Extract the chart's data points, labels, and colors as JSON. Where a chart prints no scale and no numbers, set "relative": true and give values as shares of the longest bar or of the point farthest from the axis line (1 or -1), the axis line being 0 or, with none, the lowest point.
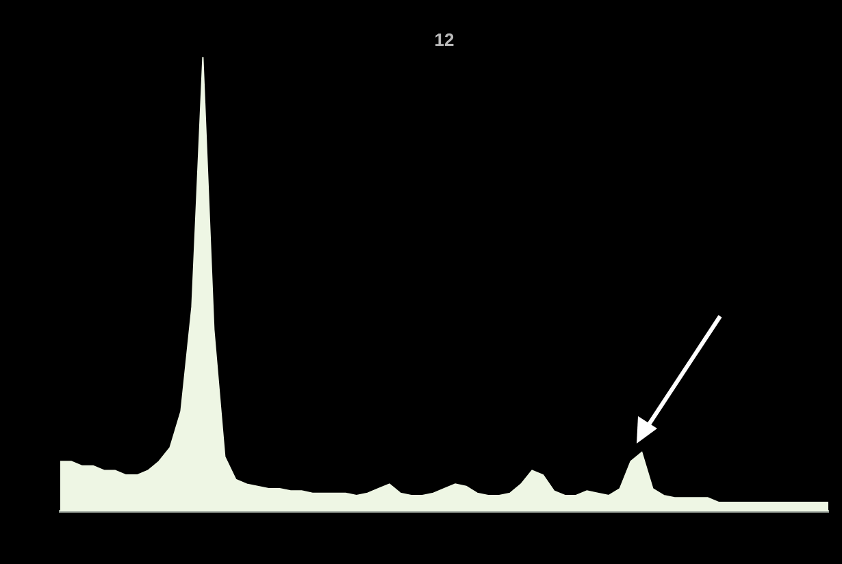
{
  "chart_data": {
    "type": "area",
    "title": "12",
    "relative": true,
    "categories": [
      null,
      null,
      null,
      null,
      null,
      null,
      null,
      null,
      null,
      null,
      null,
      null,
      null,
      null,
      null,
      null,
      null,
      null,
      null,
      null,
      null,
      null,
      null,
      null,
      null,
      null,
      null,
      null,
      null,
      null,
      null,
      null,
      null,
      null,
      null,
      null,
      null,
      null,
      null,
      null,
      null,
      null,
      null,
      null,
      null,
      null,
      null,
      null,
      null,
      null,
      null,
      null,
      null,
      null,
      null,
      null,
      null,
      null,
      null,
      null,
      null,
      null,
      null,
      null,
      null,
      null,
      null,
      null,
      null,
      null,
      null
    ],
    "series": [
      {
        "color": "#eef6e4",
        "values": [
          0.11,
          0.11,
          0.1,
          0.1,
          0.09,
          0.09,
          0.08,
          0.08,
          0.09,
          0.11,
          0.14,
          0.22,
          0.45,
          1.0,
          0.4,
          0.12,
          0.07,
          0.06,
          0.055,
          0.05,
          0.05,
          0.045,
          0.045,
          0.04,
          0.04,
          0.04,
          0.04,
          0.035,
          0.04,
          0.05,
          0.06,
          0.04,
          0.035,
          0.035,
          0.04,
          0.05,
          0.06,
          0.055,
          0.04,
          0.035,
          0.035,
          0.04,
          0.06,
          0.09,
          0.08,
          0.045,
          0.035,
          0.035,
          0.045,
          0.04,
          0.035,
          0.05,
          0.11,
          0.13,
          0.05,
          0.035,
          0.03,
          0.03,
          0.03,
          0.03,
          0.02,
          0.02,
          0.02,
          0.02,
          0.02,
          0.02,
          0.02,
          0.02,
          0.02,
          0.02,
          0.02
        ]
      }
    ]
  }
}
